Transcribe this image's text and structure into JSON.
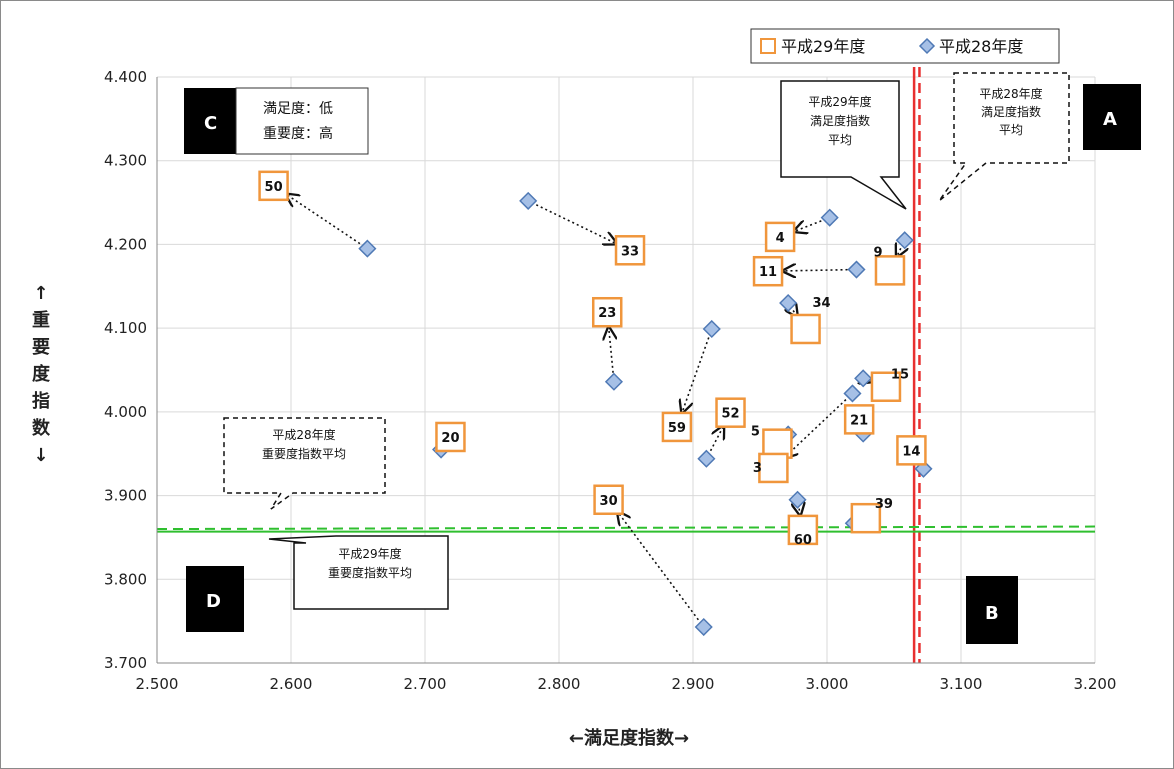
{
  "chart_data": {
    "type": "scatter",
    "xlabel": "←満足度指数→",
    "ylabel_chars": [
      "↑",
      "重",
      "要",
      "度",
      "指",
      "数",
      "↓"
    ],
    "xlim": [
      2.5,
      3.2
    ],
    "ylim": [
      3.7,
      4.4
    ],
    "x_ticks": [
      "2.500",
      "2.600",
      "2.700",
      "2.800",
      "2.900",
      "3.000",
      "3.100",
      "3.200"
    ],
    "y_ticks": [
      "3.700",
      "3.800",
      "3.900",
      "4.000",
      "4.100",
      "4.200",
      "4.300",
      "4.400"
    ],
    "grid": true,
    "legend_position": "top-right",
    "series": [
      {
        "name": "平成29年度",
        "marker": "square",
        "color": "#f0963c",
        "points": [
          {
            "id": "50",
            "x": 2.587,
            "y": 4.27
          },
          {
            "id": "33",
            "x": 2.853,
            "y": 4.193
          },
          {
            "id": "23",
            "x": 2.836,
            "y": 4.119
          },
          {
            "id": "4",
            "x": 2.965,
            "y": 4.209
          },
          {
            "id": "11",
            "x": 2.956,
            "y": 4.168
          },
          {
            "id": "9",
            "x": 3.047,
            "y": 4.169
          },
          {
            "id": "34",
            "x": 2.984,
            "y": 4.099
          },
          {
            "id": "59",
            "x": 2.888,
            "y": 3.982
          },
          {
            "id": "52",
            "x": 2.928,
            "y": 3.999
          },
          {
            "id": "20",
            "x": 2.719,
            "y": 3.97
          },
          {
            "id": "5",
            "x": 2.963,
            "y": 3.962
          },
          {
            "id": "3",
            "x": 2.96,
            "y": 3.933
          },
          {
            "id": "21",
            "x": 3.024,
            "y": 3.991
          },
          {
            "id": "15",
            "x": 3.044,
            "y": 4.03
          },
          {
            "id": "14",
            "x": 3.063,
            "y": 3.954
          },
          {
            "id": "30",
            "x": 2.837,
            "y": 3.895
          },
          {
            "id": "39",
            "x": 3.029,
            "y": 3.873
          },
          {
            "id": "60",
            "x": 2.982,
            "y": 3.859
          }
        ]
      },
      {
        "name": "平成28年度",
        "marker": "diamond",
        "color": "#a6c0e6",
        "points": [
          {
            "id": "50",
            "x": 2.657,
            "y": 4.195
          },
          {
            "id": "33",
            "x": 2.777,
            "y": 4.252
          },
          {
            "id": "23",
            "x": 2.841,
            "y": 4.036
          },
          {
            "id": "4",
            "x": 3.002,
            "y": 4.232
          },
          {
            "id": "11",
            "x": 3.022,
            "y": 4.17
          },
          {
            "id": "9",
            "x": 3.058,
            "y": 4.205
          },
          {
            "id": "34",
            "x": 2.971,
            "y": 4.13
          },
          {
            "id": "59",
            "x": 2.914,
            "y": 4.099
          },
          {
            "id": "52",
            "x": 2.91,
            "y": 3.944
          },
          {
            "id": "20",
            "x": 2.712,
            "y": 3.955
          },
          {
            "id": "5",
            "x": 2.971,
            "y": 3.973
          },
          {
            "id": "3",
            "x": 3.019,
            "y": 4.022
          },
          {
            "id": "21",
            "x": 3.027,
            "y": 3.974
          },
          {
            "id": "15",
            "x": 3.027,
            "y": 4.04
          },
          {
            "id": "14",
            "x": 3.072,
            "y": 3.932
          },
          {
            "id": "30",
            "x": 2.908,
            "y": 3.743
          },
          {
            "id": "39",
            "x": 3.02,
            "y": 3.867
          },
          {
            "id": "60",
            "x": 2.978,
            "y": 3.895
          }
        ]
      }
    ],
    "reference_lines": [
      {
        "axis": "x",
        "value": 3.065,
        "style": "solid",
        "color": "#e83030"
      },
      {
        "axis": "x",
        "value": 3.069,
        "style": "dashed",
        "color": "#e83030"
      },
      {
        "axis": "y",
        "value": 3.857,
        "style": "solid",
        "color": "#2fbf2f"
      },
      {
        "axis": "y",
        "value": 3.86,
        "style": "dashed",
        "color": "#2fbf2f",
        "slope_end": 3.863
      }
    ],
    "quadrants": {
      "A": "A",
      "B": "B",
      "C": "C",
      "D": "D"
    },
    "c_note_line1": "満足度：低",
    "c_note_line2": "重要度：高",
    "callouts": {
      "h29_sat_line1": "平成29年度",
      "h29_sat_line2": "満足度指数",
      "h29_sat_line3": "平均",
      "h28_sat_line1": "平成28年度",
      "h28_sat_line2": "満足度指数",
      "h28_sat_line3": "平均",
      "h28_imp_line1": "平成28年度",
      "h28_imp_line2": "重要度指数平均",
      "h29_imp_line1": "平成29年度",
      "h29_imp_line2": "重要度指数平均"
    }
  }
}
